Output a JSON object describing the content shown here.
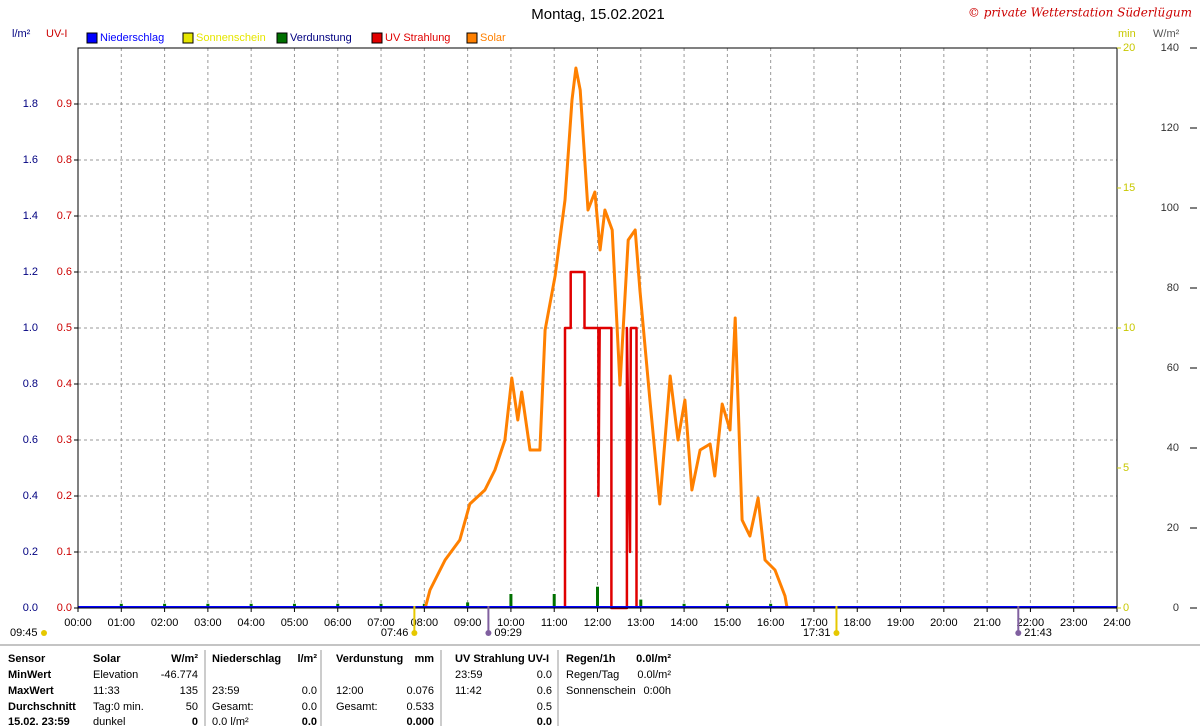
{
  "chart_data": {
    "type": "line",
    "title": "Montag, 15.02.2021",
    "copyright": "© private Wetterstation Süderlügum",
    "ylabel": "l/m²",
    "uvlabel": "UV-I",
    "minlabel": "min",
    "y2label": "W/m²",
    "xlim": [
      0,
      24
    ],
    "xticks": [
      {
        "value": 0,
        "label": "00:00"
      },
      {
        "value": 1,
        "label": "01:00"
      },
      {
        "value": 2,
        "label": "02:00"
      },
      {
        "value": 3,
        "label": "03:00"
      },
      {
        "value": 4,
        "label": "04:00"
      },
      {
        "value": 5,
        "label": "05:00"
      },
      {
        "value": 6,
        "label": "06:00"
      },
      {
        "value": 7,
        "label": "07:00"
      },
      {
        "value": 8,
        "label": "08:00"
      },
      {
        "value": 9,
        "label": "09:00"
      },
      {
        "value": 10,
        "label": "10:00"
      },
      {
        "value": 11,
        "label": "11:00"
      },
      {
        "value": 12,
        "label": "12:00"
      },
      {
        "value": 13,
        "label": "13:00"
      },
      {
        "value": 14,
        "label": "14:00"
      },
      {
        "value": 15,
        "label": "15:00"
      },
      {
        "value": 16,
        "label": "16:00"
      },
      {
        "value": 17,
        "label": "17:00"
      },
      {
        "value": 18,
        "label": "18:00"
      },
      {
        "value": 19,
        "label": "19:00"
      },
      {
        "value": 20,
        "label": "20:00"
      },
      {
        "value": 21,
        "label": "21:00"
      },
      {
        "value": 22,
        "label": "22:00"
      },
      {
        "value": 23,
        "label": "23:00"
      },
      {
        "value": 24,
        "label": "24:00"
      }
    ],
    "ylim": [
      0,
      2
    ],
    "yticks": [
      {
        "value": 0,
        "label": "0.0"
      },
      0.2,
      0.4,
      0.6,
      0.8,
      {
        "value": 1,
        "label": "1.0"
      },
      1.2,
      1.4,
      1.6,
      1.8
    ],
    "uvlim": [
      0,
      1
    ],
    "uvticks": [
      {
        "value": 0,
        "label": "0.0"
      },
      0.1,
      0.2,
      0.3,
      0.4,
      0.5,
      0.6,
      0.7,
      0.8,
      0.9
    ],
    "minlim": [
      0,
      20
    ],
    "minticks": [
      0,
      5,
      10,
      15,
      20
    ],
    "y2lim": [
      0,
      140
    ],
    "y2ticks": [
      0,
      20,
      40,
      60,
      80,
      100,
      120,
      140
    ],
    "grid": true,
    "series": [
      {
        "name": "Niederschlag",
        "color": "#0000ff"
      },
      {
        "name": "Sonnenschein",
        "color": "#e6e600"
      },
      {
        "name": "Verdunstung",
        "color": "#007000",
        "axis": "y",
        "x": [
          1,
          2,
          3,
          4,
          5,
          6,
          7,
          8,
          9,
          10,
          11,
          12,
          13,
          14,
          15,
          16
        ],
        "values": [
          0.015,
          0.015,
          0.015,
          0.015,
          0.015,
          0.015,
          0.015,
          0.015,
          0.02,
          0.05,
          0.05,
          0.076,
          0.03,
          0.015,
          0.015,
          0.015
        ]
      },
      {
        "name": "UV Strahlung",
        "color": "#e00000",
        "axis": "uv",
        "x": [
          11.25,
          11.25,
          11.38,
          11.38,
          11.7,
          11.7,
          12.02,
          12.02,
          12.05,
          12.32,
          12.32,
          12.68,
          12.68,
          12.75,
          12.77,
          12.9,
          12.9
        ],
        "values": [
          0,
          0.5,
          0.5,
          0.6,
          0.6,
          0.5,
          0.5,
          0.2,
          0.5,
          0.5,
          0,
          0,
          0.5,
          0.1,
          0.5,
          0.5,
          0
        ]
      },
      {
        "name": "Solar",
        "color": "#ff8000",
        "axis": "y2",
        "x": [
          8.02,
          8.13,
          8.48,
          8.82,
          9.05,
          9.4,
          9.63,
          9.86,
          10.02,
          10.16,
          10.25,
          10.44,
          10.67,
          10.79,
          11.02,
          11.25,
          11.41,
          11.5,
          11.6,
          11.78,
          11.94,
          12.06,
          12.17,
          12.34,
          12.52,
          12.71,
          12.87,
          12.98,
          13.21,
          13.44,
          13.68,
          13.86,
          14.02,
          14.18,
          14.37,
          14.6,
          14.71,
          14.88,
          15.06,
          15.18,
          15.34,
          15.52,
          15.71,
          15.87,
          16.1,
          16.33,
          16.38
        ],
        "values": [
          0,
          4.5,
          12,
          17,
          26,
          29.5,
          34.5,
          42,
          57.5,
          47,
          54,
          39.5,
          39.5,
          69.5,
          83,
          102,
          127,
          135,
          129.5,
          99.5,
          104,
          89.5,
          99.5,
          94.5,
          55.75,
          92,
          94.5,
          79.5,
          52,
          26,
          58,
          42,
          52,
          29.5,
          39.5,
          41,
          33,
          51,
          44.5,
          72.5,
          22,
          18,
          27.5,
          12,
          9.5,
          3,
          0
        ]
      }
    ],
    "annotations": [
      {
        "text": "09:45"
      },
      {
        "text": "07:46",
        "x": 7.77
      },
      {
        "text": "09:29",
        "x": 9.48
      },
      {
        "text": "17:31",
        "x": 17.52
      },
      {
        "text": "21:43",
        "x": 21.72
      }
    ]
  },
  "stats": {
    "rows": [
      {
        "label": "Sensor",
        "solar": {
          "l": "Solar",
          "r": "W/m²"
        },
        "rain": {
          "l": "Niederschlag",
          "r": "l/m²"
        },
        "evap": {
          "l": "Verdunstung",
          "r": "mm"
        },
        "uv": {
          "l": "UV Strahlung UV-I"
        },
        "extra": {
          "l": "Regen/1h",
          "r": "0.0l/m²"
        }
      },
      {
        "label": "MinWert",
        "solar": {
          "l": "Elevation",
          "r": "-46.774"
        },
        "uv": {
          "l": "23:59",
          "r": "0.0"
        },
        "extra": {
          "l": "Regen/Tag",
          "r": "0.0l/m²"
        }
      },
      {
        "label": "MaxWert",
        "solar": {
          "l": "11:33",
          "r": "135"
        },
        "rain": {
          "l": "23:59",
          "r": "0.0"
        },
        "evap": {
          "l": "12:00",
          "r": "0.076"
        },
        "uv": {
          "l": "11:42",
          "r": "0.6"
        },
        "extra": {
          "l": "Sonnenschein",
          "r": "0:00h"
        }
      },
      {
        "label": "Durchschnitt",
        "solar": {
          "l": "Tag:0 min.",
          "r": "50"
        },
        "rain": {
          "l": "Gesamt:",
          "r": "0.0"
        },
        "evap": {
          "l": "Gesamt:",
          "r": "0.533"
        },
        "uv": {
          "r": "0.5"
        }
      },
      {
        "label": "15.02. 23:59",
        "solar": {
          "l": "dunkel",
          "r": "0"
        },
        "rain": {
          "l": "0.0 l/m²",
          "r": "0.0"
        },
        "evap": {
          "r": "0.000"
        },
        "uv": {
          "r": "0.0"
        }
      }
    ]
  }
}
